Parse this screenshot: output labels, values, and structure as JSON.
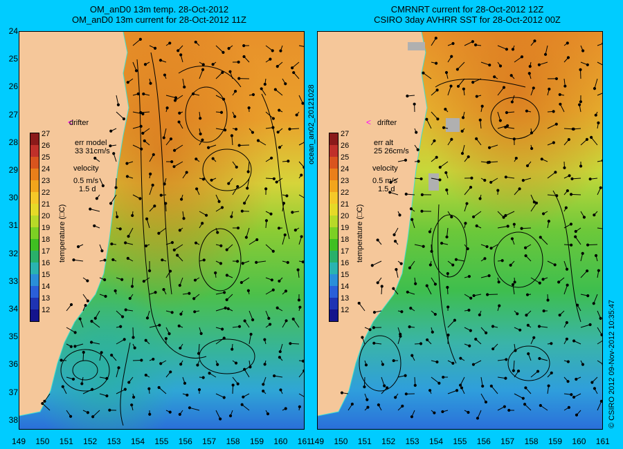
{
  "left_panel": {
    "title_line1": "OM_anD0 13m temp. 28-Oct-2012",
    "title_line2": "OM_anD0 13m current for 28-Oct-2012 11Z",
    "err_label": "err model",
    "err_value": "33 31cm/s"
  },
  "right_panel": {
    "title_line1": "CMRNRT current for 28-Oct-2012 12Z",
    "title_line2": "CSIRO 3day AVHRR SST for 28-Oct-2012 00Z",
    "err_label": "err alt",
    "err_value": "25 26cm/s"
  },
  "legend": {
    "drifter_label": "drifter",
    "velocity_label": "velocity",
    "velocity_scale": "0.5 m/s",
    "velocity_time": "1.5 d",
    "colorbar_title": "temperature (□C)",
    "colorbar_ticks": [
      "27",
      "26",
      "25",
      "24",
      "23",
      "22",
      "21",
      "20",
      "19",
      "18",
      "17",
      "16",
      "15",
      "14",
      "13",
      "12"
    ],
    "colorbar_colors": [
      "#8b1a1a",
      "#c0302a",
      "#d9541e",
      "#ea7f1a",
      "#f2a51c",
      "#f5c828",
      "#e6d928",
      "#b8d928",
      "#7cd024",
      "#3fbf22",
      "#2ab06a",
      "#2ab3b0",
      "#2a8fd9",
      "#2a5fd9",
      "#1e33b3",
      "#14148c"
    ]
  },
  "axes": {
    "y_ticks": [
      "24",
      "25",
      "26",
      "27",
      "28",
      "29",
      "30",
      "31",
      "32",
      "33",
      "34",
      "35",
      "36",
      "37",
      "38"
    ],
    "x_ticks": [
      "149",
      "150",
      "151",
      "152",
      "153",
      "154",
      "155",
      "156",
      "157",
      "158",
      "159",
      "160",
      "161"
    ]
  },
  "side_label": "ocean_an02_20121028",
  "credit": "© CSIRO 2012   09-Nov-2012 10:35:47",
  "colors": {
    "background": "#00ccff",
    "land": "#f5c79a",
    "warm": "#e8a02a",
    "cool": "#3aa8e0"
  }
}
